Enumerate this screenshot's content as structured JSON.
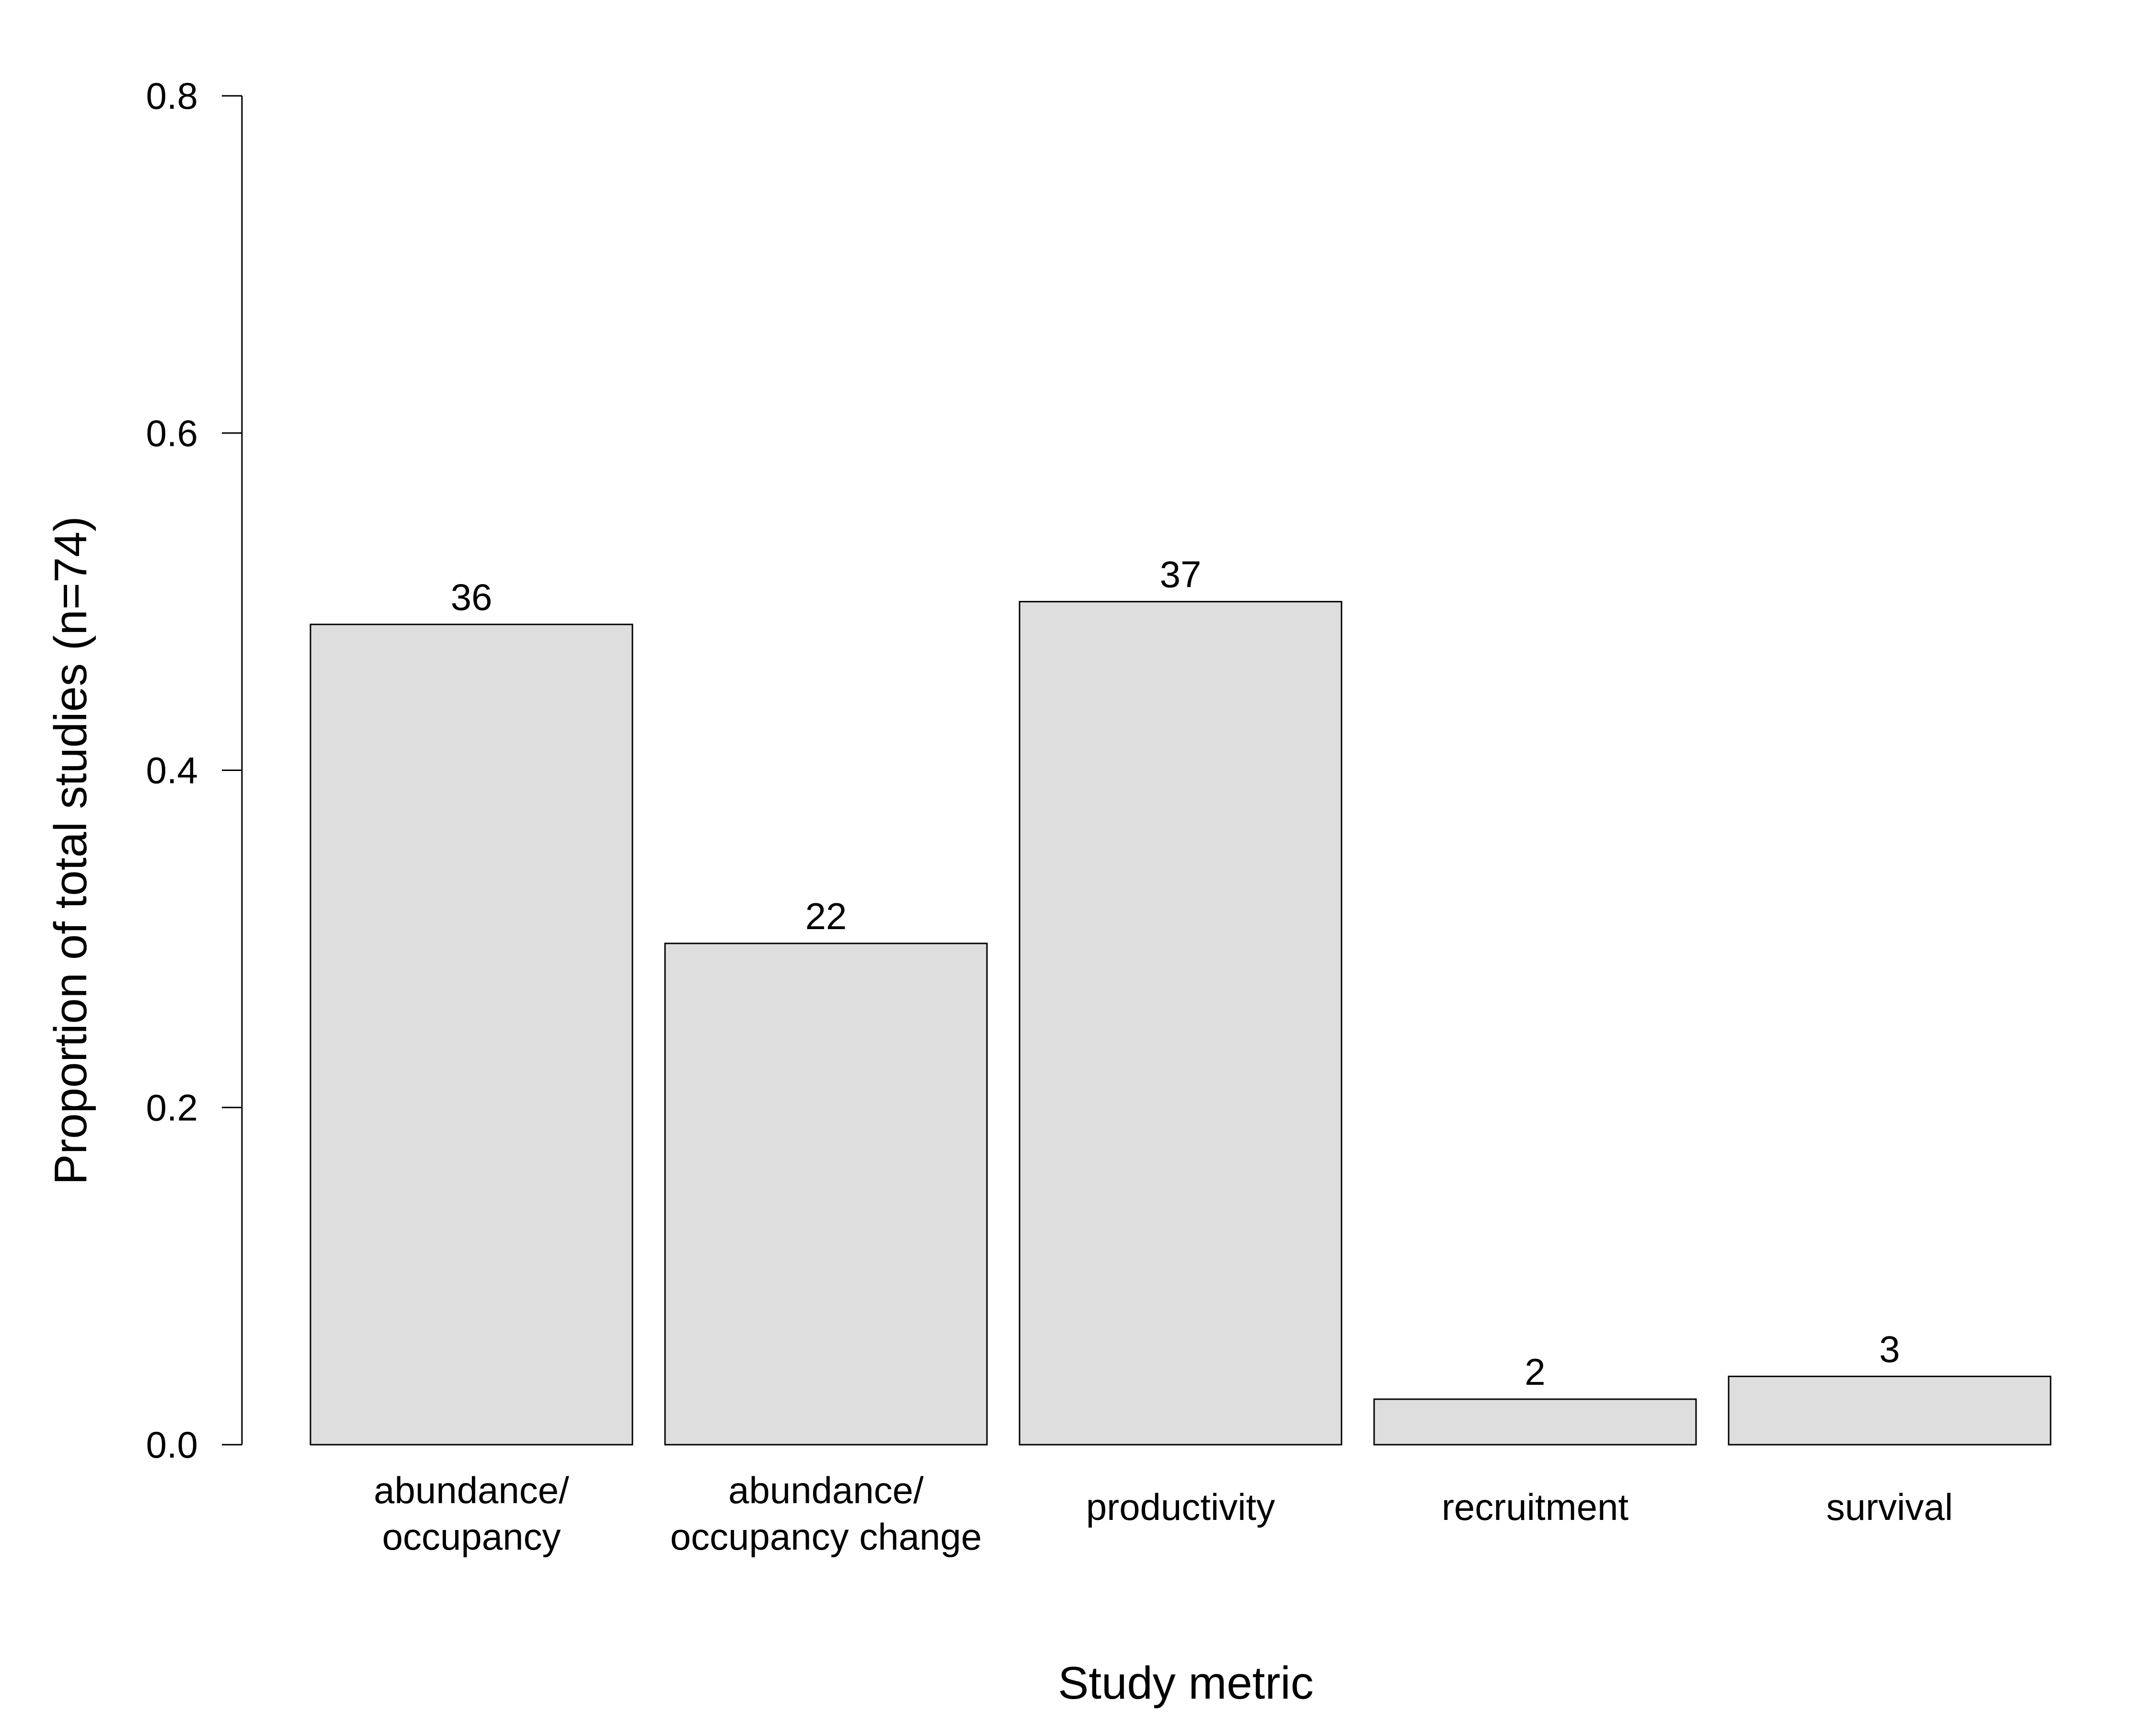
{
  "chart_data": {
    "type": "bar",
    "title": "",
    "xlabel": "Study metric",
    "ylabel": "Proportion of total studies (n=74)",
    "ylim": [
      0,
      0.8
    ],
    "yticks": [
      "0.0",
      "0.2",
      "0.4",
      "0.6",
      "0.8"
    ],
    "categories": [
      [
        "abundance/",
        "occupancy"
      ],
      [
        "abundance/",
        "occupancy change"
      ],
      [
        "productivity"
      ],
      [
        "recruitment"
      ],
      [
        "survival"
      ]
    ],
    "values": [
      0.4865,
      0.2973,
      0.5,
      0.027,
      0.0405
    ],
    "bar_labels": [
      "36",
      "22",
      "37",
      "2",
      "3"
    ],
    "bar_fill": "#dedede",
    "bar_stroke": "#000000",
    "grid": false,
    "legend": "none"
  }
}
